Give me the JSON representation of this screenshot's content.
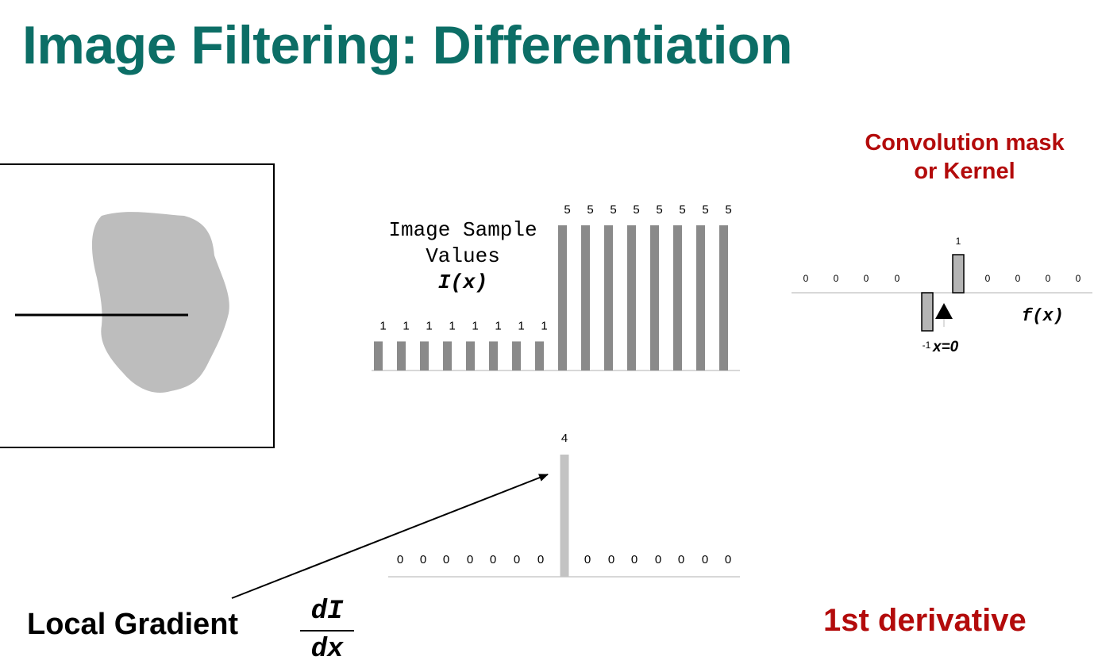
{
  "slide": {
    "title": "Image Filtering: Differentiation",
    "kernel_heading": [
      "Convolution mask",
      "or Kernel"
    ],
    "sample_label": [
      "Image Sample",
      "Values",
      "I(x)"
    ],
    "kernel_function_label": "f(x)",
    "kernel_origin_label": "x=0",
    "local_gradient_label": "Local Gradient",
    "fraction": {
      "numerator": "dI",
      "denominator": "dx"
    },
    "derivative_label": "1st derivative"
  },
  "colors": {
    "title": "#0c6e66",
    "accent_red": "#b30b0b",
    "bar_gray": "#8a8a8a",
    "blob_gray": "#bdbdbd",
    "kernel_bar": "#b5b5b5",
    "spike": "#c3c3c3"
  },
  "chart_data": [
    {
      "type": "bar",
      "name": "image-samples",
      "values": [
        1,
        1,
        1,
        1,
        1,
        1,
        1,
        1,
        5,
        5,
        5,
        5,
        5,
        5,
        5,
        5
      ],
      "ylim": [
        0,
        5
      ]
    },
    {
      "type": "bar",
      "name": "kernel",
      "values": [
        0,
        0,
        0,
        0,
        -1,
        1,
        0,
        0,
        0,
        0
      ],
      "labels": [
        "0",
        "0",
        "0",
        "0",
        "-1",
        "1",
        "0",
        "0",
        "0",
        "0"
      ],
      "ylim": [
        -1,
        1
      ]
    },
    {
      "type": "bar",
      "name": "derivative",
      "values": [
        0,
        0,
        0,
        0,
        0,
        0,
        0,
        4,
        0,
        0,
        0,
        0,
        0,
        0,
        0
      ],
      "ylim": [
        0,
        4
      ]
    }
  ]
}
